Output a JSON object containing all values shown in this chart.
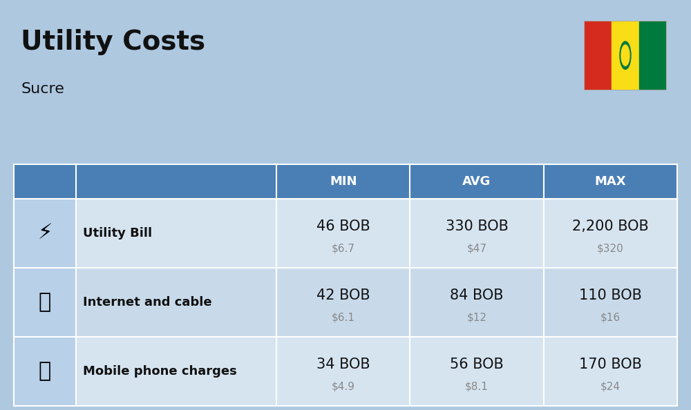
{
  "title": "Utility Costs",
  "subtitle": "Sucre",
  "background_color": "#aec8e0",
  "header_color": "#4a7fb5",
  "header_text_color": "#ffffff",
  "row_colors": [
    "#d6e4f0",
    "#c8daea"
  ],
  "icon_col_color": "#b8d0e8",
  "text_color": "#111111",
  "subtext_color": "#888888",
  "columns": [
    "MIN",
    "AVG",
    "MAX"
  ],
  "rows": [
    {
      "label": "Utility Bill",
      "min_bob": "46 BOB",
      "min_usd": "$6.7",
      "avg_bob": "330 BOB",
      "avg_usd": "$47",
      "max_bob": "2,200 BOB",
      "max_usd": "$320"
    },
    {
      "label": "Internet and cable",
      "min_bob": "42 BOB",
      "min_usd": "$6.1",
      "avg_bob": "84 BOB",
      "avg_usd": "$12",
      "max_bob": "110 BOB",
      "max_usd": "$16"
    },
    {
      "label": "Mobile phone charges",
      "min_bob": "34 BOB",
      "min_usd": "$4.9",
      "avg_bob": "56 BOB",
      "avg_usd": "$8.1",
      "max_bob": "170 BOB",
      "max_usd": "$24"
    }
  ],
  "flag_colors": [
    "#d52b1e",
    "#f9dd16",
    "#007a3d"
  ],
  "title_fontsize": 28,
  "subtitle_fontsize": 16,
  "header_fontsize": 13,
  "cell_fontsize_main": 15,
  "cell_fontsize_sub": 11,
  "label_fontsize": 13
}
